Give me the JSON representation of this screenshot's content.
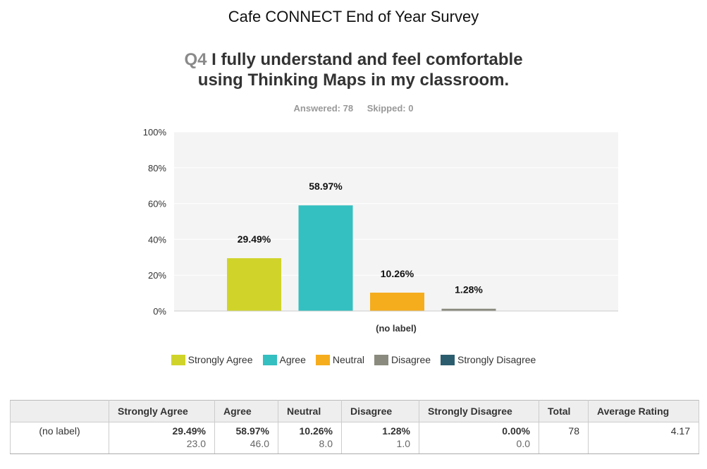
{
  "survey_title": "Cafe CONNECT End of Year Survey",
  "question": {
    "number": "Q4",
    "line1": "I fully understand and feel comfortable",
    "line2": "using Thinking Maps in my classroom."
  },
  "answered_text": "Answered: 78",
  "skipped_text": "Skipped: 0",
  "colors": {
    "strongly_agree": "#d0d42a",
    "agree": "#34bfc0",
    "neutral": "#f5ad1e",
    "disagree": "#8a8a7e",
    "strongly_disagree": "#2b5d6e",
    "plot_bg": "#f4f4f4",
    "grid": "#ffffff"
  },
  "chart_data": {
    "type": "bar",
    "categories": [
      "(no label)"
    ],
    "xlabel": "(no label)",
    "ylabel": "",
    "ylim": [
      0,
      100
    ],
    "ytick_labels": [
      "0%",
      "20%",
      "40%",
      "60%",
      "80%",
      "100%"
    ],
    "ytick_values": [
      0,
      20,
      40,
      60,
      80,
      100
    ],
    "grid": true,
    "legend_position": "bottom",
    "series": [
      {
        "name": "Strongly Agree",
        "values": [
          29.49
        ],
        "label": "29.49%"
      },
      {
        "name": "Agree",
        "values": [
          58.97
        ],
        "label": "58.97%"
      },
      {
        "name": "Neutral",
        "values": [
          10.26
        ],
        "label": "10.26%"
      },
      {
        "name": "Disagree",
        "values": [
          1.28
        ],
        "label": "1.28%"
      },
      {
        "name": "Strongly Disagree",
        "values": [
          0
        ],
        "label": ""
      }
    ]
  },
  "table": {
    "headers": [
      "",
      "Strongly Agree",
      "Agree",
      "Neutral",
      "Disagree",
      "Strongly Disagree",
      "Total",
      "Average Rating"
    ],
    "row": {
      "label": "(no label)",
      "cells": [
        {
          "pct": "29.49%",
          "count": "23.0"
        },
        {
          "pct": "58.97%",
          "count": "46.0"
        },
        {
          "pct": "10.26%",
          "count": "8.0"
        },
        {
          "pct": "1.28%",
          "count": "1.0"
        },
        {
          "pct": "0.00%",
          "count": "0.0"
        }
      ],
      "total": "78",
      "average": "4.17"
    }
  }
}
